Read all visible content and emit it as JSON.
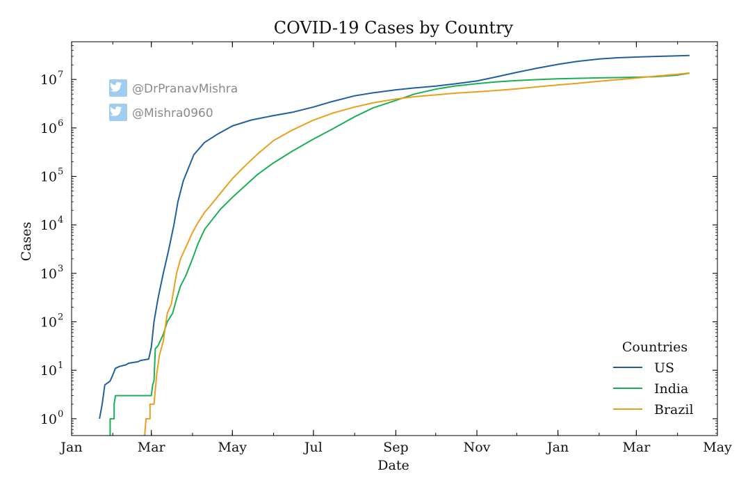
{
  "chart_data": {
    "type": "line",
    "title": "COVID-19 Cases by Country",
    "xlabel": "Date",
    "ylabel": "Cases",
    "yscale": "log",
    "ylim": [
      0.45,
      60000000
    ],
    "xlim": [
      "2020-01-01",
      "2021-05-01"
    ],
    "x_ticks": [
      {
        "date": "2020-01-01",
        "label": "Jan"
      },
      {
        "date": "2020-03-01",
        "label": "Mar"
      },
      {
        "date": "2020-05-01",
        "label": "May"
      },
      {
        "date": "2020-07-01",
        "label": "Jul"
      },
      {
        "date": "2020-09-01",
        "label": "Sep"
      },
      {
        "date": "2020-11-01",
        "label": "Nov"
      },
      {
        "date": "2021-01-01",
        "label": "Jan"
      },
      {
        "date": "2021-03-01",
        "label": "Mar"
      },
      {
        "date": "2021-05-01",
        "label": "May"
      }
    ],
    "y_ticks": [
      {
        "value": 1,
        "base": "10",
        "exp": "0"
      },
      {
        "value": 10,
        "base": "10",
        "exp": "1"
      },
      {
        "value": 100,
        "base": "10",
        "exp": "2"
      },
      {
        "value": 1000,
        "base": "10",
        "exp": "3"
      },
      {
        "value": 10000,
        "base": "10",
        "exp": "4"
      },
      {
        "value": 100000,
        "base": "10",
        "exp": "5"
      },
      {
        "value": 1000000,
        "base": "10",
        "exp": "6"
      },
      {
        "value": 10000000,
        "base": "10",
        "exp": "7"
      }
    ],
    "legend": {
      "title": "Countries",
      "position": "lower-right"
    },
    "grid": false,
    "series": [
      {
        "name": "US",
        "color": "#1f5fa0",
        "points": [
          [
            "2020-01-22",
            1
          ],
          [
            "2020-01-24",
            2
          ],
          [
            "2020-01-26",
            5
          ],
          [
            "2020-01-30",
            6
          ],
          [
            "2020-02-01",
            8
          ],
          [
            "2020-02-03",
            11
          ],
          [
            "2020-02-06",
            12
          ],
          [
            "2020-02-11",
            13
          ],
          [
            "2020-02-13",
            14
          ],
          [
            "2020-02-20",
            15
          ],
          [
            "2020-02-22",
            16
          ],
          [
            "2020-02-28",
            17
          ],
          [
            "2020-03-01",
            30
          ],
          [
            "2020-03-03",
            100
          ],
          [
            "2020-03-06",
            300
          ],
          [
            "2020-03-08",
            550
          ],
          [
            "2020-03-10",
            1000
          ],
          [
            "2020-03-14",
            3000
          ],
          [
            "2020-03-18",
            10000
          ],
          [
            "2020-03-21",
            30000
          ],
          [
            "2020-03-25",
            80000
          ],
          [
            "2020-03-29",
            150000
          ],
          [
            "2020-04-02",
            280000
          ],
          [
            "2020-04-10",
            500000
          ],
          [
            "2020-04-20",
            750000
          ],
          [
            "2020-05-01",
            1100000
          ],
          [
            "2020-05-15",
            1450000
          ],
          [
            "2020-06-01",
            1800000
          ],
          [
            "2020-06-15",
            2100000
          ],
          [
            "2020-07-01",
            2700000
          ],
          [
            "2020-07-15",
            3500000
          ],
          [
            "2020-08-01",
            4600000
          ],
          [
            "2020-08-15",
            5300000
          ],
          [
            "2020-09-01",
            6100000
          ],
          [
            "2020-09-15",
            6700000
          ],
          [
            "2020-10-01",
            7300000
          ],
          [
            "2020-10-15",
            8100000
          ],
          [
            "2020-11-01",
            9300000
          ],
          [
            "2020-11-15",
            11200000
          ],
          [
            "2020-12-01",
            14000000
          ],
          [
            "2020-12-15",
            16800000
          ],
          [
            "2021-01-01",
            20500000
          ],
          [
            "2021-01-15",
            23500000
          ],
          [
            "2021-02-01",
            26500000
          ],
          [
            "2021-02-15",
            28000000
          ],
          [
            "2021-03-01",
            29000000
          ],
          [
            "2021-03-15",
            29800000
          ],
          [
            "2021-04-01",
            30700000
          ],
          [
            "2021-04-10",
            31200000
          ]
        ]
      },
      {
        "name": "India",
        "color": "#1aaf54",
        "points": [
          [
            "2020-01-30",
            0.45
          ],
          [
            "2020-01-30",
            1
          ],
          [
            "2020-02-02",
            1
          ],
          [
            "2020-02-02",
            2
          ],
          [
            "2020-02-03",
            3
          ],
          [
            "2020-02-05",
            3
          ],
          [
            "2020-02-15",
            3
          ],
          [
            "2020-03-01",
            3
          ],
          [
            "2020-03-02",
            5
          ],
          [
            "2020-03-03",
            6
          ],
          [
            "2020-03-04",
            28
          ],
          [
            "2020-03-06",
            32
          ],
          [
            "2020-03-10",
            55
          ],
          [
            "2020-03-13",
            100
          ],
          [
            "2020-03-17",
            150
          ],
          [
            "2020-03-20",
            300
          ],
          [
            "2020-03-23",
            550
          ],
          [
            "2020-03-27",
            900
          ],
          [
            "2020-04-01",
            2000
          ],
          [
            "2020-04-05",
            4000
          ],
          [
            "2020-04-10",
            8000
          ],
          [
            "2020-04-15",
            12000
          ],
          [
            "2020-04-22",
            21000
          ],
          [
            "2020-05-01",
            37000
          ],
          [
            "2020-05-10",
            62000
          ],
          [
            "2020-05-20",
            110000
          ],
          [
            "2020-06-01",
            190000
          ],
          [
            "2020-06-15",
            330000
          ],
          [
            "2020-07-01",
            590000
          ],
          [
            "2020-07-15",
            940000
          ],
          [
            "2020-08-01",
            1700000
          ],
          [
            "2020-08-15",
            2600000
          ],
          [
            "2020-09-01",
            3700000
          ],
          [
            "2020-09-15",
            5000000
          ],
          [
            "2020-10-01",
            6300000
          ],
          [
            "2020-10-15",
            7300000
          ],
          [
            "2020-11-01",
            8200000
          ],
          [
            "2020-11-15",
            8900000
          ],
          [
            "2020-12-01",
            9500000
          ],
          [
            "2020-12-15",
            9900000
          ],
          [
            "2021-01-01",
            10300000
          ],
          [
            "2021-02-01",
            10800000
          ],
          [
            "2021-03-01",
            11100000
          ],
          [
            "2021-03-15",
            11400000
          ],
          [
            "2021-04-01",
            12300000
          ],
          [
            "2021-04-10",
            13500000
          ]
        ]
      },
      {
        "name": "Brazil",
        "color": "#ea9f1c",
        "points": [
          [
            "2020-02-25",
            0.45
          ],
          [
            "2020-02-26",
            1
          ],
          [
            "2020-02-29",
            1
          ],
          [
            "2020-02-29",
            2
          ],
          [
            "2020-03-03",
            2
          ],
          [
            "2020-03-04",
            4
          ],
          [
            "2020-03-05",
            8
          ],
          [
            "2020-03-07",
            20
          ],
          [
            "2020-03-10",
            40
          ],
          [
            "2020-03-13",
            150
          ],
          [
            "2020-03-16",
            230
          ],
          [
            "2020-03-20",
            1000
          ],
          [
            "2020-03-23",
            2000
          ],
          [
            "2020-03-28",
            4000
          ],
          [
            "2020-04-01",
            7000
          ],
          [
            "2020-04-05",
            11000
          ],
          [
            "2020-04-10",
            18000
          ],
          [
            "2020-04-15",
            26000
          ],
          [
            "2020-04-22",
            45000
          ],
          [
            "2020-05-01",
            90000
          ],
          [
            "2020-05-10",
            160000
          ],
          [
            "2020-05-20",
            290000
          ],
          [
            "2020-06-01",
            550000
          ],
          [
            "2020-06-15",
            900000
          ],
          [
            "2020-07-01",
            1450000
          ],
          [
            "2020-07-15",
            2000000
          ],
          [
            "2020-08-01",
            2700000
          ],
          [
            "2020-08-15",
            3300000
          ],
          [
            "2020-09-01",
            3950000
          ],
          [
            "2020-09-15",
            4400000
          ],
          [
            "2020-10-01",
            4800000
          ],
          [
            "2020-10-15",
            5200000
          ],
          [
            "2020-11-01",
            5550000
          ],
          [
            "2020-11-15",
            5900000
          ],
          [
            "2020-12-01",
            6400000
          ],
          [
            "2020-12-15",
            7000000
          ],
          [
            "2021-01-01",
            7700000
          ],
          [
            "2021-01-15",
            8300000
          ],
          [
            "2021-02-01",
            9200000
          ],
          [
            "2021-02-15",
            9900000
          ],
          [
            "2021-03-01",
            10700000
          ],
          [
            "2021-03-15",
            11700000
          ],
          [
            "2021-04-01",
            12800000
          ],
          [
            "2021-04-10",
            13600000
          ]
        ]
      }
    ]
  },
  "watermark": {
    "handles": [
      "@DrPranavMishra",
      "@Mishra0960"
    ],
    "icon": "twitter-bird-icon",
    "icon_color": "#9ecdef"
  }
}
